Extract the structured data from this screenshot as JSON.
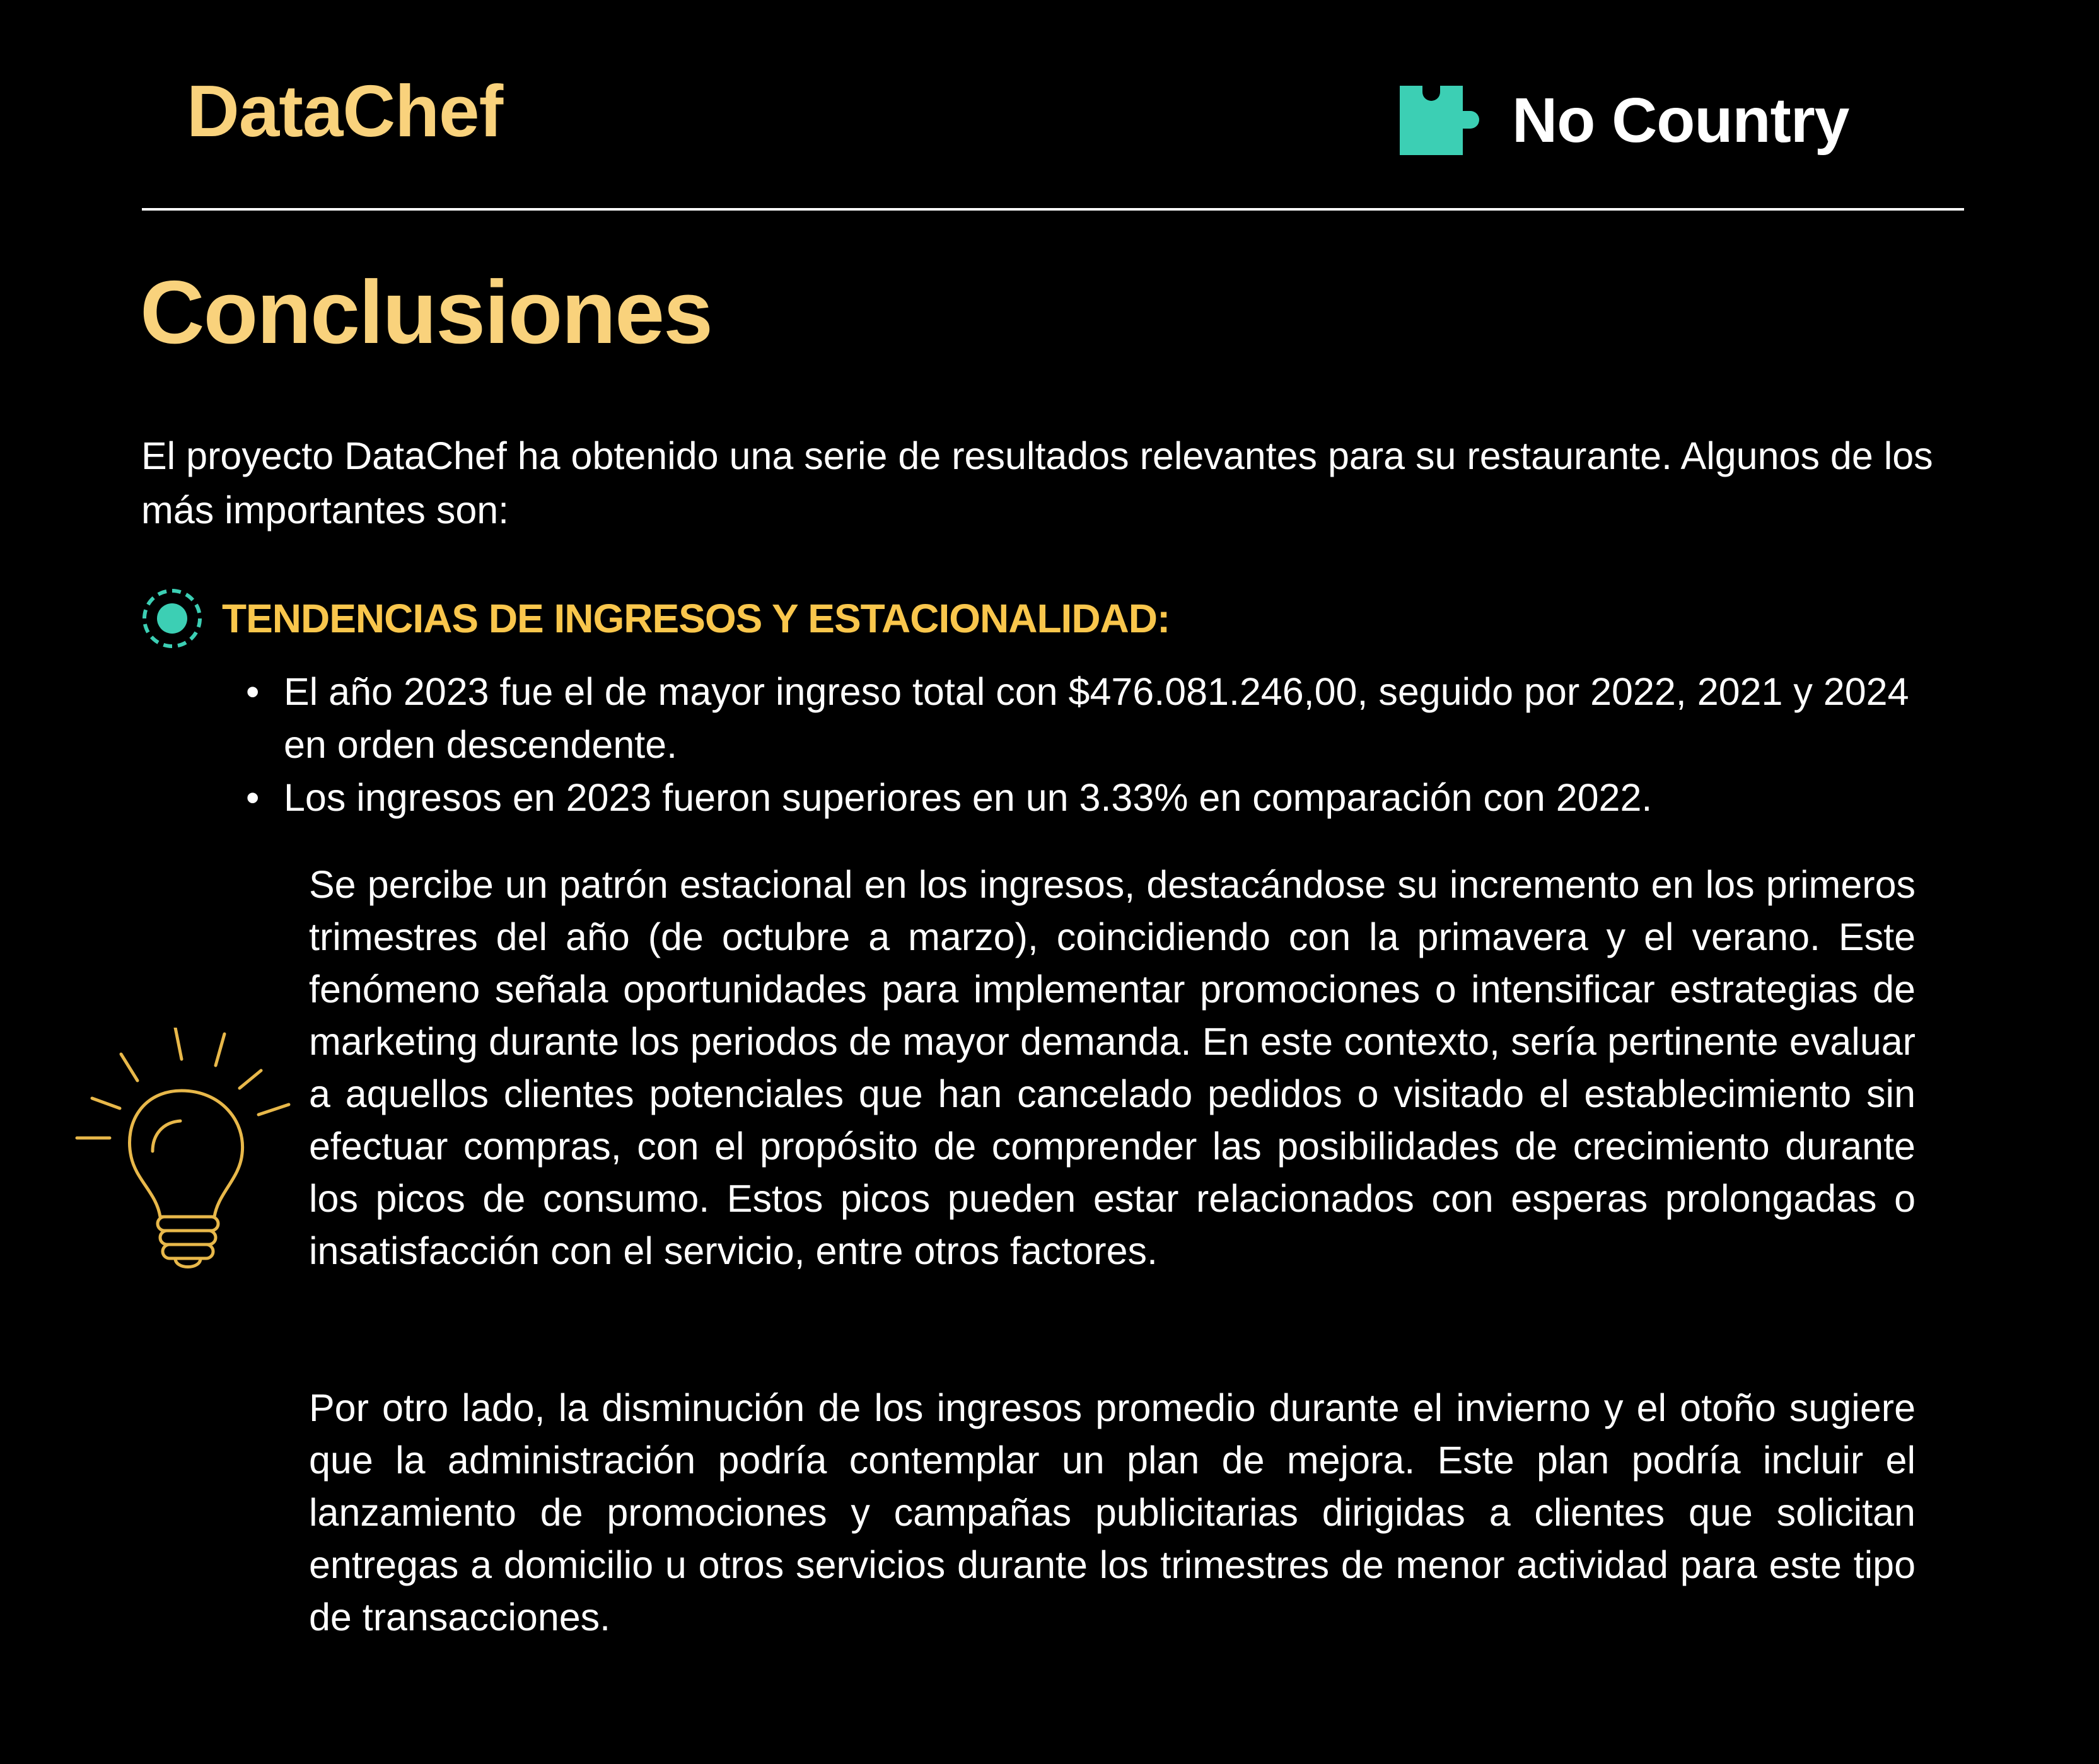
{
  "header": {
    "brand": "DataChef",
    "partner_name": "No Country",
    "partner_logo_icon": "puzzle-piece-icon",
    "partner_logo_color": "#3CCFB4"
  },
  "page": {
    "title": "Conclusiones",
    "intro": "El proyecto DataChef ha obtenido una serie de resultados relevantes para su restaurante. Algunos de los más importantes son:"
  },
  "section": {
    "icon": "target-icon",
    "title": "TENDENCIAS DE INGRESOS Y ESTACIONALIDAD:",
    "bullets": [
      "El año 2023 fue el de mayor ingreso total con $476.081.246,00, seguido por 2022, 2021 y 2024 en orden descendente.",
      "Los ingresos en 2023 fueron superiores en un 3.33% en comparación con 2022."
    ],
    "paragraphs": [
      "Se percibe un patrón estacional en los ingresos, destacándose su incremento en los primeros trimestres del año (de octubre a marzo), coincidiendo con la primavera y el verano. Este fenómeno señala oportunidades para implementar promociones o intensificar estrategias de marketing durante los periodos de mayor demanda. En este contexto, sería pertinente evaluar a aquellos clientes potenciales que han cancelado pedidos o visitado el establecimiento sin efectuar compras, con el propósito de comprender las posibilidades de crecimiento durante los picos de consumo. Estos picos pueden estar relacionados con esperas prolongadas o insatisfacción con el servicio, entre otros factores.",
      "Por otro lado, la disminución de los ingresos promedio durante el invierno y el otoño sugiere que la administración podría contemplar un plan de mejora. Este plan podría incluir el lanzamiento de promociones y campañas publicitarias dirigidas a clientes que solicitan entregas a domicilio u otros servicios durante los trimestres de menor actividad para este tipo de transacciones."
    ],
    "illustration_icon": "lightbulb-icon"
  },
  "colors": {
    "background": "#000000",
    "accent_yellow": "#F9D27C",
    "section_yellow": "#F9C64C",
    "teal": "#3CCFB4",
    "text": "#FFFFFF"
  }
}
